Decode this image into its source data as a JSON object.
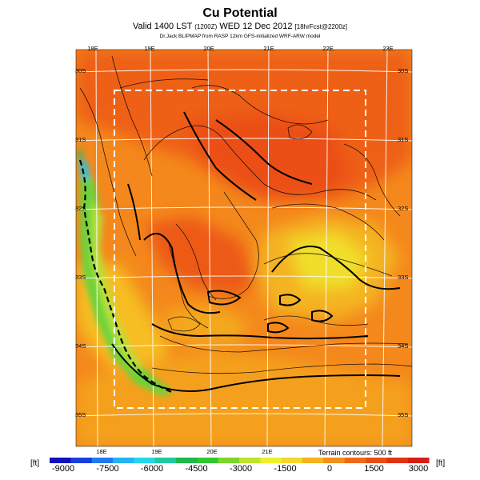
{
  "header": {
    "title": "Cu Potential",
    "valid_main": "Valid 1400 LST",
    "valid_small1": "(1200Z)",
    "valid_date": "WED 12 Dec 2012",
    "valid_small2": "[18hrFcst@2200z]",
    "credit": "Dr.Jack BLIPMAP from RASP 12km GFS-initialized WRF-ARW model"
  },
  "map": {
    "lon_labels": [
      "18E",
      "19E",
      "20E",
      "21E",
      "22E",
      "23E"
    ],
    "lat_labels": [
      "30S",
      "31S",
      "32S",
      "33S",
      "34S",
      "35S"
    ],
    "terrain_note": "Terrain contours: 500 ft",
    "colors": {
      "deep_orange": "#ee5a12",
      "orange": "#f47a1a",
      "light_orange": "#f5a31c",
      "yellow_orange": "#f7c21f",
      "yellow": "#f2e92a",
      "yellow_green": "#b9e23b",
      "green": "#5fcf3e",
      "cyan": "#22c5e7"
    }
  },
  "colorbar": {
    "unit_label": "[ft]",
    "ticks": [
      "-9000",
      "-7500",
      "-6000",
      "-4500",
      "-3000",
      "-1500",
      "0",
      "1500",
      "3000"
    ],
    "colors": [
      "#1010c0",
      "#1a3de0",
      "#1f7af0",
      "#21b4f0",
      "#22d8e8",
      "#20c9a0",
      "#1fb84a",
      "#2fc82f",
      "#7ad629",
      "#bde52a",
      "#eef02c",
      "#f7d52a",
      "#f7b21f",
      "#f48f1a",
      "#f06a16",
      "#ea4d14",
      "#e03314",
      "#d81e14"
    ]
  }
}
